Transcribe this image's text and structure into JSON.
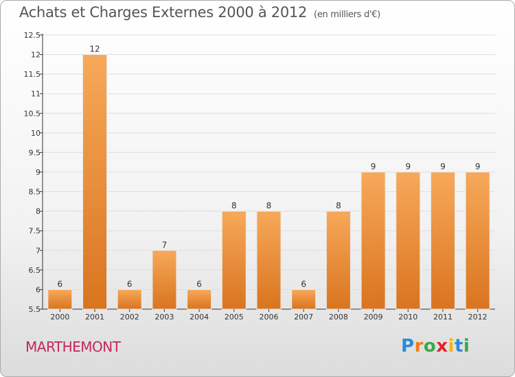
{
  "header": {
    "title": "Achats et Charges Externes 2000 à 2012",
    "subtitle": "(en milliers d'€)"
  },
  "commune": "MARTHEMONT",
  "logo": {
    "text": "Proxiti",
    "letter_colors": [
      "#2a8ad8",
      "#f07d1a",
      "#3aa94a",
      "#e2232a",
      "#f0b51a",
      "#2a8ad8",
      "#3aa94a"
    ]
  },
  "colors": {
    "bar_light": "#f7a95a",
    "bar_dark": "#d9741f",
    "axis": "#333333",
    "grid": "#dddddd"
  },
  "chart_data": {
    "type": "bar",
    "title": "Achats et Charges Externes 2000 à 2012",
    "subtitle": "(en milliers d'€)",
    "categories": [
      "2000",
      "2001",
      "2002",
      "2003",
      "2004",
      "2005",
      "2006",
      "2007",
      "2008",
      "2009",
      "2010",
      "2011",
      "2012"
    ],
    "values": [
      6,
      12,
      6,
      7,
      6,
      8,
      8,
      6,
      8,
      9,
      9,
      9,
      9
    ],
    "value_labels": [
      "6",
      "12",
      "6",
      "7",
      "6",
      "8",
      "8",
      "6",
      "8",
      "9",
      "9",
      "9",
      "9"
    ],
    "ylim": [
      5.5,
      12.5
    ],
    "yticks": [
      "5.5",
      "6",
      "6.5",
      "7",
      "7.5",
      "8",
      "8.5",
      "9",
      "9.5",
      "10",
      "10.5",
      "11",
      "11.5",
      "12",
      "12.5"
    ],
    "grid": true,
    "legend": "none"
  }
}
